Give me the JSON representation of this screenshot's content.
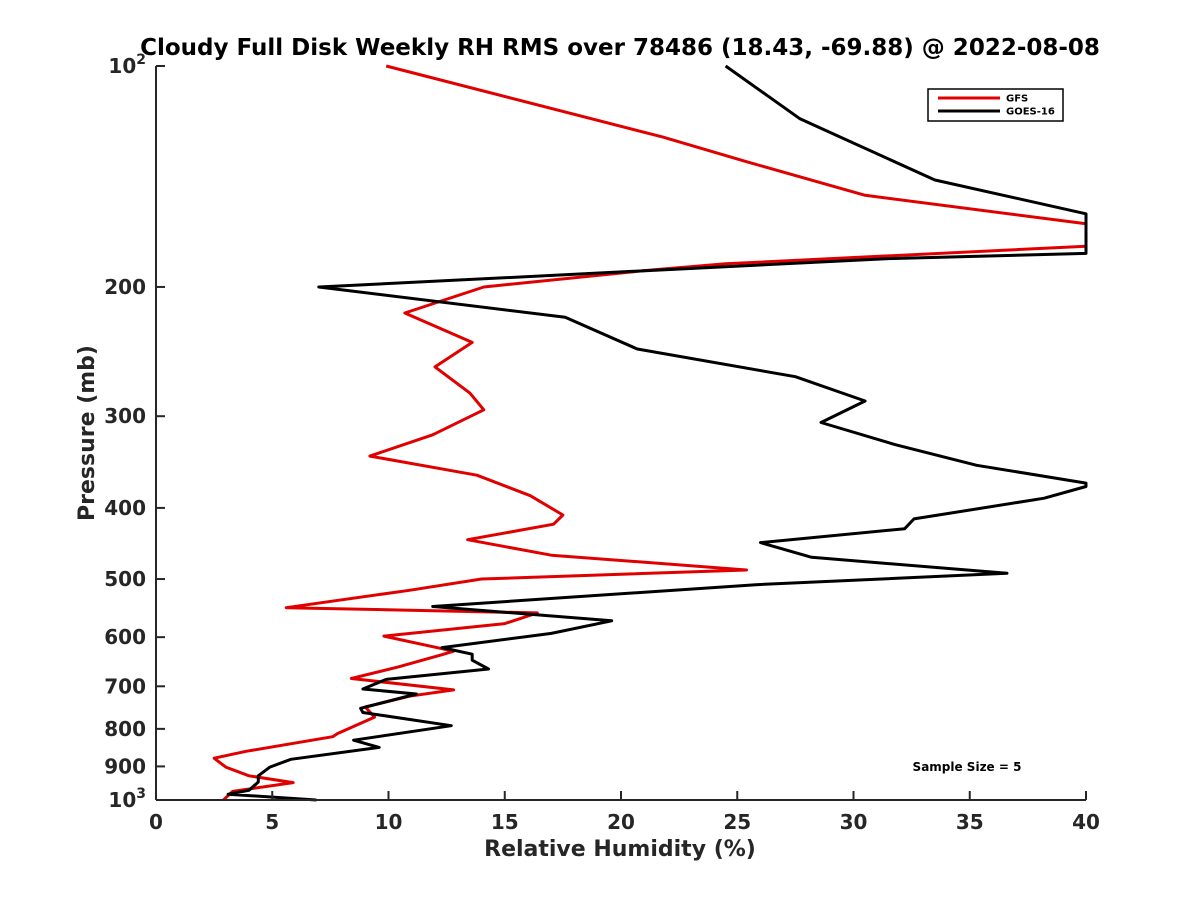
{
  "chart_data": {
    "type": "line",
    "title": "Cloudy Full Disk Weekly RH RMS over 78486 (18.43, -69.88) @ 2022-08-08",
    "xlabel": "Relative Humidity (%)",
    "ylabel": "Pressure (mb)",
    "xlim": [
      0,
      40
    ],
    "ylim": [
      100,
      1000
    ],
    "yscale": "log",
    "y_reversed": true,
    "grid": false,
    "legend_position": "top-right",
    "annotation": "Sample Size = 5",
    "x_ticks": [
      {
        "value": 0,
        "label": "0"
      },
      {
        "value": 5,
        "label": "5"
      },
      {
        "value": 10,
        "label": "10"
      },
      {
        "value": 15,
        "label": "15"
      },
      {
        "value": 20,
        "label": "20"
      },
      {
        "value": 25,
        "label": "25"
      },
      {
        "value": 30,
        "label": "30"
      },
      {
        "value": 35,
        "label": "35"
      },
      {
        "value": 40,
        "label": "40"
      }
    ],
    "y_ticks": [
      {
        "value": 100,
        "label": "10",
        "sup": "2"
      },
      {
        "value": 200,
        "label": "200",
        "sup": ""
      },
      {
        "value": 300,
        "label": "300",
        "sup": ""
      },
      {
        "value": 400,
        "label": "400",
        "sup": ""
      },
      {
        "value": 500,
        "label": "500",
        "sup": ""
      },
      {
        "value": 600,
        "label": "600",
        "sup": ""
      },
      {
        "value": 700,
        "label": "700",
        "sup": ""
      },
      {
        "value": 800,
        "label": "800",
        "sup": ""
      },
      {
        "value": 900,
        "label": "900",
        "sup": ""
      },
      {
        "value": 1000,
        "label": "10",
        "sup": "3"
      }
    ],
    "series": [
      {
        "name": "GFS",
        "color": "#e00000",
        "points": [
          [
            9.9,
            100
          ],
          [
            21.8,
            125
          ],
          [
            25.4,
            135
          ],
          [
            30.5,
            150
          ],
          [
            40.0,
            164
          ],
          [
            40.0,
            176
          ],
          [
            24.5,
            186
          ],
          [
            21.0,
            190
          ],
          [
            14.1,
            200
          ],
          [
            10.7,
            217
          ],
          [
            13.6,
            238
          ],
          [
            12.0,
            257
          ],
          [
            13.5,
            279
          ],
          [
            14.1,
            294
          ],
          [
            11.9,
            318
          ],
          [
            9.2,
            340
          ],
          [
            13.8,
            361
          ],
          [
            16.1,
            385
          ],
          [
            17.5,
            409
          ],
          [
            17.1,
            421
          ],
          [
            13.4,
            442
          ],
          [
            17.0,
            464
          ],
          [
            25.4,
            486
          ],
          [
            14.0,
            500
          ],
          [
            10.9,
            518
          ],
          [
            5.6,
            547
          ],
          [
            16.4,
            556
          ],
          [
            15.0,
            575
          ],
          [
            9.8,
            598
          ],
          [
            12.8,
            627
          ],
          [
            12.3,
            634
          ],
          [
            10.4,
            659
          ],
          [
            8.4,
            683
          ],
          [
            12.8,
            708
          ],
          [
            10.9,
            722
          ],
          [
            9.0,
            747
          ],
          [
            9.4,
            771
          ],
          [
            7.8,
            812
          ],
          [
            7.6,
            820
          ],
          [
            3.9,
            858
          ],
          [
            2.5,
            877
          ],
          [
            3.0,
            902
          ],
          [
            4.0,
            927
          ],
          [
            5.9,
            947
          ],
          [
            3.3,
            973
          ],
          [
            2.9,
            1000
          ]
        ]
      },
      {
        "name": "GOES-16",
        "color": "#000000",
        "points": [
          [
            24.5,
            100
          ],
          [
            27.7,
            118
          ],
          [
            33.5,
            143
          ],
          [
            40.0,
            159
          ],
          [
            40.0,
            180
          ],
          [
            31.5,
            183
          ],
          [
            7.0,
            200
          ],
          [
            17.6,
            220
          ],
          [
            20.7,
            243
          ],
          [
            27.5,
            265
          ],
          [
            30.5,
            286
          ],
          [
            28.6,
            306
          ],
          [
            31.8,
            328
          ],
          [
            35.3,
            350
          ],
          [
            40.0,
            370
          ],
          [
            40.0,
            374
          ],
          [
            38.2,
            388
          ],
          [
            32.6,
            414
          ],
          [
            32.2,
            427
          ],
          [
            26.0,
            446
          ],
          [
            28.2,
            467
          ],
          [
            36.6,
            491
          ],
          [
            25.8,
            509
          ],
          [
            11.9,
            545
          ],
          [
            19.6,
            570
          ],
          [
            17.0,
            593
          ],
          [
            12.3,
            620
          ],
          [
            13.6,
            633
          ],
          [
            13.6,
            645
          ],
          [
            14.3,
            663
          ],
          [
            9.9,
            685
          ],
          [
            8.9,
            706
          ],
          [
            11.2,
            717
          ],
          [
            8.8,
            750
          ],
          [
            8.9,
            760
          ],
          [
            12.7,
            792
          ],
          [
            8.5,
            829
          ],
          [
            9.6,
            848
          ],
          [
            5.8,
            880
          ],
          [
            4.9,
            902
          ],
          [
            4.4,
            927
          ],
          [
            4.4,
            945
          ],
          [
            4.0,
            970
          ],
          [
            3.1,
            982
          ],
          [
            6.9,
            1000
          ]
        ]
      }
    ]
  }
}
